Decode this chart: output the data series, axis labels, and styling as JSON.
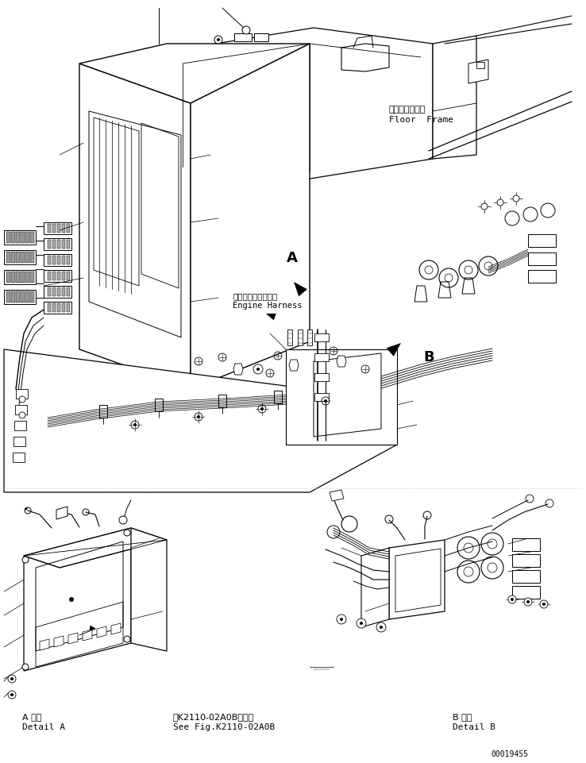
{
  "bg_color": "#ffffff",
  "figsize": [
    7.38,
    9.61
  ],
  "dpi": 100,
  "labels": {
    "floor_frame_jp": "フロアフレーム",
    "floor_frame_en": "Floor  Frame",
    "engine_harness_jp": "エンジンハーネスヘ",
    "engine_harness_en": "Engine Harness",
    "detail_a_jp": "A 詳細",
    "detail_a_en": "Detail A",
    "detail_b_jp": "B 詳細",
    "detail_b_en": "Detail B",
    "see_fig_jp": "第K2110-02A0B図参照",
    "see_fig_en": "See Fig.K2110-02A0B",
    "part_number": "00019455",
    "label_A": "A",
    "label_B": "B"
  }
}
